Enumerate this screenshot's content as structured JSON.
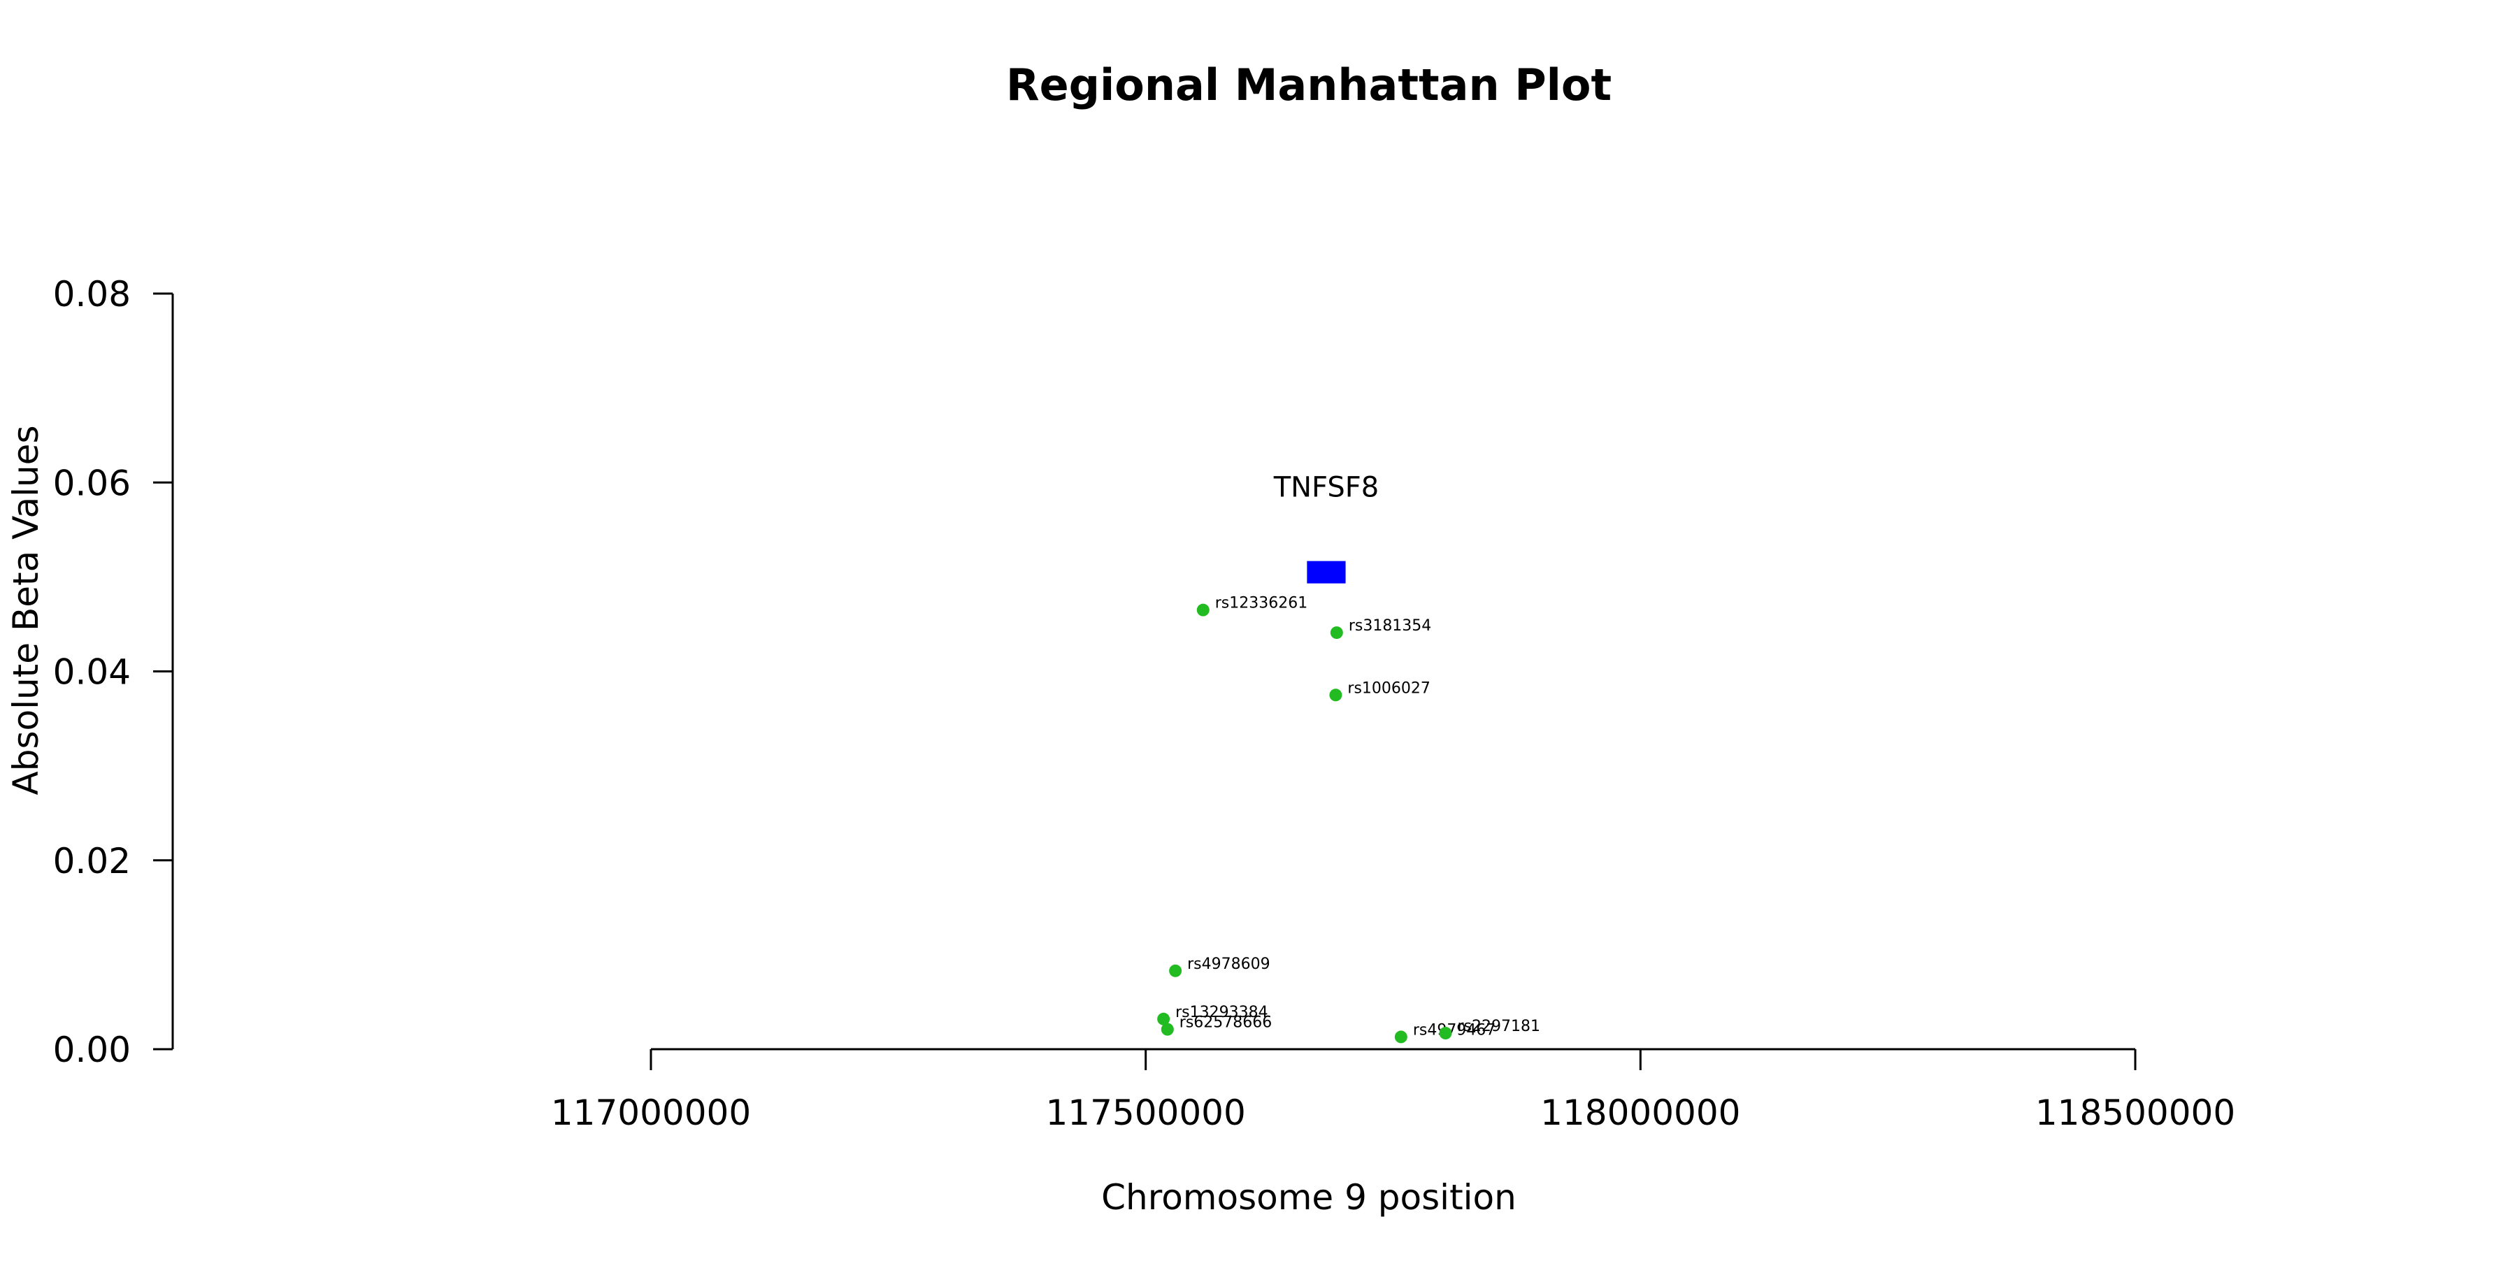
{
  "chart_data": {
    "type": "scatter",
    "title": "Regional Manhattan Plot",
    "xlabel": "Chromosome 9 position",
    "ylabel": "Absolute Beta Values",
    "xlim": [
      117000000,
      118500000
    ],
    "ylim": [
      0,
      0.08
    ],
    "xticks": [
      117000000,
      117500000,
      118000000,
      118500000
    ],
    "yticks": [
      0.0,
      0.02,
      0.04,
      0.06,
      0.08
    ],
    "xtick_labels": [
      "117000000",
      "117500000",
      "118000000",
      "118500000"
    ],
    "ytick_labels": [
      "0.00",
      "0.02",
      "0.04",
      "0.06",
      "0.08"
    ],
    "grid": false,
    "point_color": "#22bb22",
    "gene_color": "#0000ff",
    "points": [
      {
        "label": "rs12336261",
        "x": 117558000,
        "y": 0.0465
      },
      {
        "label": "rs3181354",
        "x": 117693000,
        "y": 0.0441
      },
      {
        "label": "rs1006027",
        "x": 117692000,
        "y": 0.0375
      },
      {
        "label": "rs4978609",
        "x": 117530000,
        "y": 0.0083
      },
      {
        "label": "rs13293384",
        "x": 117518000,
        "y": 0.0032
      },
      {
        "label": "rs62578666",
        "x": 117522000,
        "y": 0.0021
      },
      {
        "label": "rs4979467",
        "x": 117758000,
        "y": 0.0013
      },
      {
        "label": "rs2297181",
        "x": 117803000,
        "y": 0.0017
      }
    ],
    "genes": [
      {
        "name": "TNFSF8",
        "start": 117663000,
        "end": 117702000,
        "y": 0.0505
      }
    ]
  }
}
